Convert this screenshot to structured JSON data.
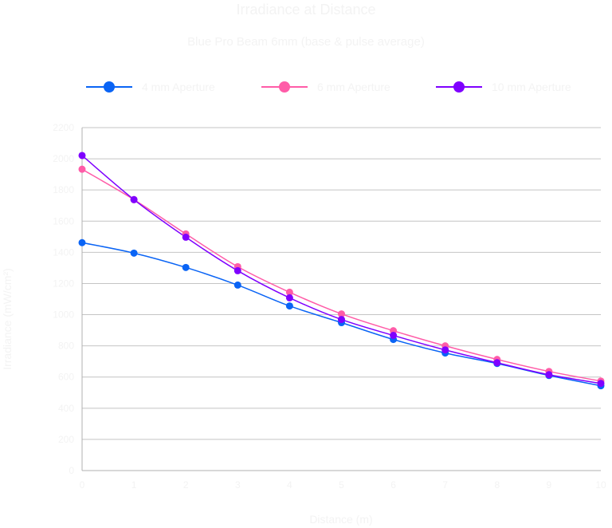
{
  "chart_data": {
    "type": "line",
    "title": "Irradiance at Distance",
    "subtitle": "Blue Pro Beam 6mm (base & pulse average)",
    "xlabel": "Distance (m)",
    "ylabel": "Irradiance (mW/cm²)",
    "x": [
      0,
      1,
      2,
      3,
      4,
      5,
      6,
      7,
      8,
      9,
      10
    ],
    "xlim": [
      0,
      10
    ],
    "ylim": [
      0,
      2200
    ],
    "yticks": [
      0,
      200,
      400,
      600,
      800,
      1000,
      1200,
      1400,
      1600,
      1800,
      2000,
      2200
    ],
    "grid": true,
    "legend_position": "top",
    "series": [
      {
        "name": "4 mm Aperture",
        "color": "#0a64f5",
        "values": [
          1462,
          1395,
          1303,
          1190,
          1056,
          949,
          841,
          754,
          687,
          610,
          544
        ]
      },
      {
        "name": "6 mm Aperture",
        "color": "#ff5ca8",
        "values": [
          1933,
          1738,
          1518,
          1308,
          1144,
          1005,
          897,
          800,
          713,
          636,
          574
        ]
      },
      {
        "name": "10 mm Aperture",
        "color": "#7f00ff",
        "values": [
          2021,
          1738,
          1497,
          1282,
          1108,
          969,
          867,
          774,
          692,
          615,
          559
        ]
      }
    ]
  }
}
